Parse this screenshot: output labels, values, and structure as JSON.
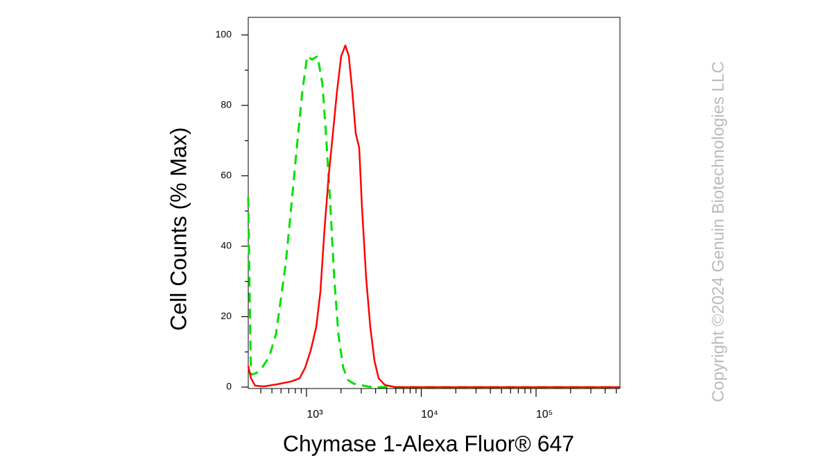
{
  "chart_data": {
    "type": "line",
    "xlabel": "Chymase 1-Alexa Fluor® 647",
    "ylabel": "Cell Counts (% Max)",
    "watermark": "Copyright ©2024 Genuin Biotechnologies LLC",
    "xscale": "log",
    "xlim": [
      311,
      538000
    ],
    "ylim": [
      -0.4,
      105
    ],
    "xticks": [
      {
        "value": 1000,
        "label": "10³"
      },
      {
        "value": 10000,
        "label": "10⁴"
      },
      {
        "value": 100000,
        "label": "10⁵"
      }
    ],
    "xminorticks": [
      400,
      500,
      600,
      700,
      800,
      900,
      2000,
      3000,
      4000,
      5000,
      6000,
      7000,
      8000,
      9000,
      20000,
      30000,
      40000,
      50000,
      60000,
      70000,
      80000,
      90000,
      200000,
      300000,
      400000,
      500000
    ],
    "yticks": [
      0,
      20,
      40,
      60,
      80,
      100
    ],
    "yminorticks": [
      10,
      30,
      50,
      70,
      90
    ],
    "series": [
      {
        "color": "#00e000",
        "dashed": true,
        "x": [
          311,
          320,
          329,
          367,
          410,
          472,
          542,
          598,
          659,
          736,
          823,
          920,
          1014,
          1118,
          1249,
          1377,
          1476,
          1605,
          1745,
          1897,
          2089,
          2305,
          2576,
          3403,
          3909,
          36220,
          538000
        ],
        "values": [
          54,
          25,
          3.5,
          4,
          5.5,
          8.5,
          15,
          25,
          35,
          51,
          68,
          84,
          94,
          93,
          94,
          86,
          72,
          53,
          31,
          15,
          5.5,
          2,
          1,
          0.2,
          0,
          0,
          0
        ]
      },
      {
        "color": "#ff0000",
        "dashed": false,
        "x": [
          311,
          329,
          357,
          422,
          557,
          736,
          870,
          973,
          1087,
          1215,
          1321,
          1436,
          1561,
          1697,
          1845,
          2005,
          2180,
          2337,
          2505,
          2685,
          2878,
          3043,
          3308,
          3596,
          3909,
          4250,
          4818,
          5935,
          36220,
          538000
        ],
        "values": [
          6,
          2.5,
          0.4,
          0.2,
          0.8,
          1.6,
          2.5,
          5.5,
          10.4,
          17,
          27,
          45,
          60,
          72,
          84,
          94,
          97,
          94,
          84,
          72,
          68,
          51,
          31,
          17,
          7.5,
          2.5,
          0.6,
          0,
          0,
          0
        ]
      }
    ]
  }
}
